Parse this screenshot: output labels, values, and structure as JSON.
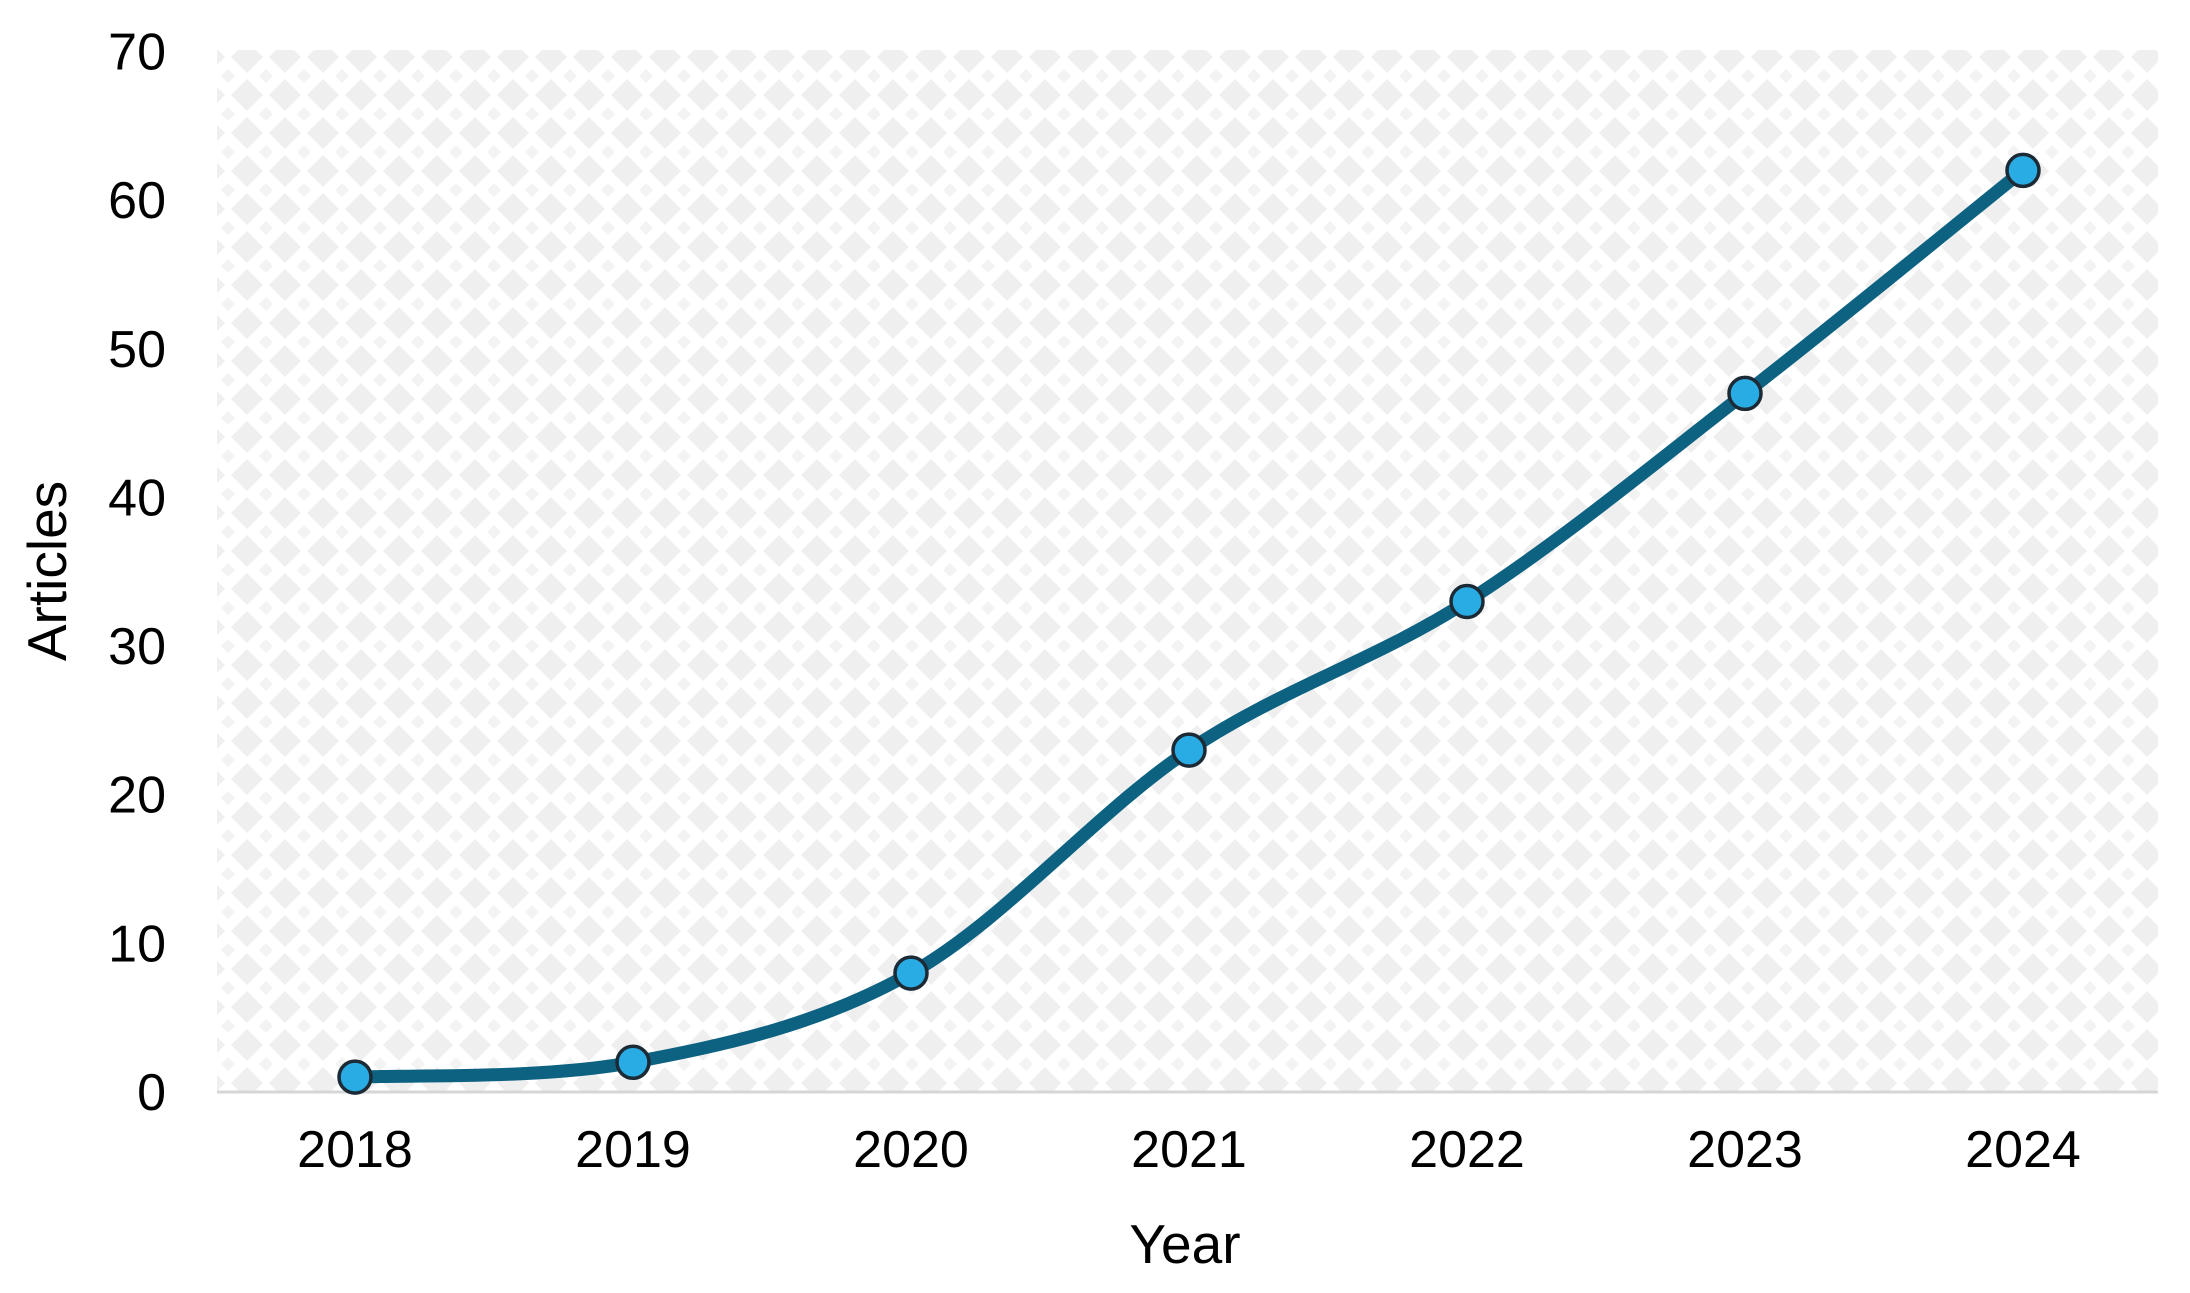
{
  "chart_data": {
    "type": "line",
    "title": "",
    "categories": [
      "2018",
      "2019",
      "2020",
      "2021",
      "2022",
      "2023",
      "2024"
    ],
    "series": [
      {
        "name": "Articles",
        "values": [
          1,
          2,
          8,
          23,
          33,
          47,
          62
        ]
      }
    ],
    "xlabel": "Year",
    "ylabel": "Articles",
    "ylim": [
      0,
      70
    ],
    "yticks": [
      0,
      10,
      20,
      30,
      40,
      50,
      60,
      70
    ],
    "grid": false,
    "legend_position": "none",
    "line_smooth": true,
    "markers": true,
    "style": {
      "line_color": "#0d6282",
      "marker_fill": "#29ace3",
      "marker_stroke": "#1c2a35",
      "axis_line_color": "#d6d6d6",
      "text_color": "#000000",
      "pattern_diamond_color": "#efefef",
      "pattern_small_diamond_color": "#f3f3f3",
      "background_color": "#ffffff"
    }
  }
}
